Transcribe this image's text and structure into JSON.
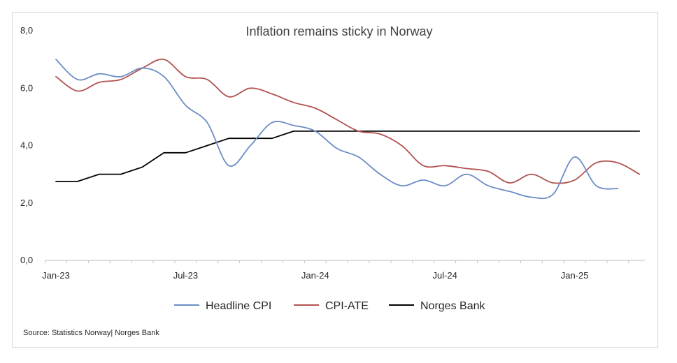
{
  "chart_data": {
    "type": "line",
    "title": "Inflation remains sticky in Norway",
    "source": "Source: Statistics Norway| Norges Bank",
    "ylim": [
      0,
      8
    ],
    "y_ticks": [
      "0,0",
      "2,0",
      "4,0",
      "6,0",
      "8,0"
    ],
    "x_range": [
      "2023-01",
      "2025-05"
    ],
    "x_ticks": [
      {
        "label": "Jan-23",
        "date": "2023-01"
      },
      {
        "label": "Jul-23",
        "date": "2023-07"
      },
      {
        "label": "Jan-24",
        "date": "2024-01"
      },
      {
        "label": "Jul-24",
        "date": "2024-07"
      },
      {
        "label": "Jan-25",
        "date": "2025-01"
      }
    ],
    "grid": false,
    "legend_position": "bottom",
    "series": [
      {
        "name": "Headline CPI",
        "color": "#6b8cc6",
        "smooth": true,
        "points": [
          [
            "2023-01",
            7.0
          ],
          [
            "2023-02",
            6.3
          ],
          [
            "2023-03",
            6.5
          ],
          [
            "2023-04",
            6.4
          ],
          [
            "2023-05",
            6.7
          ],
          [
            "2023-06",
            6.4
          ],
          [
            "2023-07",
            5.4
          ],
          [
            "2023-08",
            4.8
          ],
          [
            "2023-09",
            3.3
          ],
          [
            "2023-10",
            4.0
          ],
          [
            "2023-11",
            4.8
          ],
          [
            "2023-12",
            4.7
          ],
          [
            "2024-01",
            4.5
          ],
          [
            "2024-02",
            3.9
          ],
          [
            "2024-03",
            3.6
          ],
          [
            "2024-04",
            3.0
          ],
          [
            "2024-05",
            2.6
          ],
          [
            "2024-06",
            2.8
          ],
          [
            "2024-07",
            2.6
          ],
          [
            "2024-08",
            3.0
          ],
          [
            "2024-09",
            2.6
          ],
          [
            "2024-10",
            2.4
          ],
          [
            "2024-11",
            2.2
          ],
          [
            "2024-12",
            2.3
          ],
          [
            "2025-01",
            3.6
          ],
          [
            "2025-02",
            2.6
          ],
          [
            "2025-03",
            2.5
          ]
        ]
      },
      {
        "name": "CPI-ATE",
        "color": "#b0524f",
        "smooth": true,
        "points": [
          [
            "2023-01",
            6.4
          ],
          [
            "2023-02",
            5.9
          ],
          [
            "2023-03",
            6.2
          ],
          [
            "2023-04",
            6.3
          ],
          [
            "2023-05",
            6.7
          ],
          [
            "2023-06",
            7.0
          ],
          [
            "2023-07",
            6.4
          ],
          [
            "2023-08",
            6.3
          ],
          [
            "2023-09",
            5.7
          ],
          [
            "2023-10",
            6.0
          ],
          [
            "2023-11",
            5.8
          ],
          [
            "2023-12",
            5.5
          ],
          [
            "2024-01",
            5.3
          ],
          [
            "2024-02",
            4.9
          ],
          [
            "2024-03",
            4.5
          ],
          [
            "2024-04",
            4.4
          ],
          [
            "2024-05",
            4.0
          ],
          [
            "2024-06",
            3.3
          ],
          [
            "2024-07",
            3.3
          ],
          [
            "2024-08",
            3.2
          ],
          [
            "2024-09",
            3.1
          ],
          [
            "2024-10",
            2.7
          ],
          [
            "2024-11",
            3.0
          ],
          [
            "2024-12",
            2.7
          ],
          [
            "2025-01",
            2.8
          ],
          [
            "2025-02",
            3.4
          ],
          [
            "2025-03",
            3.4
          ],
          [
            "2025-04",
            3.0
          ]
        ]
      },
      {
        "name": "Norges Bank",
        "color": "#000000",
        "smooth": false,
        "points": [
          [
            "2023-01",
            2.75
          ],
          [
            "2023-02",
            2.75
          ],
          [
            "2023-03",
            3.0
          ],
          [
            "2023-04",
            3.0
          ],
          [
            "2023-05",
            3.25
          ],
          [
            "2023-06",
            3.75
          ],
          [
            "2023-07",
            3.75
          ],
          [
            "2023-08",
            4.0
          ],
          [
            "2023-09",
            4.25
          ],
          [
            "2023-10",
            4.25
          ],
          [
            "2023-11",
            4.25
          ],
          [
            "2023-12",
            4.5
          ],
          [
            "2024-01",
            4.5
          ],
          [
            "2024-02",
            4.5
          ],
          [
            "2024-03",
            4.5
          ],
          [
            "2024-04",
            4.5
          ],
          [
            "2024-05",
            4.5
          ],
          [
            "2024-06",
            4.5
          ],
          [
            "2024-07",
            4.5
          ],
          [
            "2024-08",
            4.5
          ],
          [
            "2024-09",
            4.5
          ],
          [
            "2024-10",
            4.5
          ],
          [
            "2024-11",
            4.5
          ],
          [
            "2024-12",
            4.5
          ],
          [
            "2025-01",
            4.5
          ],
          [
            "2025-02",
            4.5
          ],
          [
            "2025-03",
            4.5
          ],
          [
            "2025-04",
            4.5
          ]
        ]
      }
    ]
  }
}
